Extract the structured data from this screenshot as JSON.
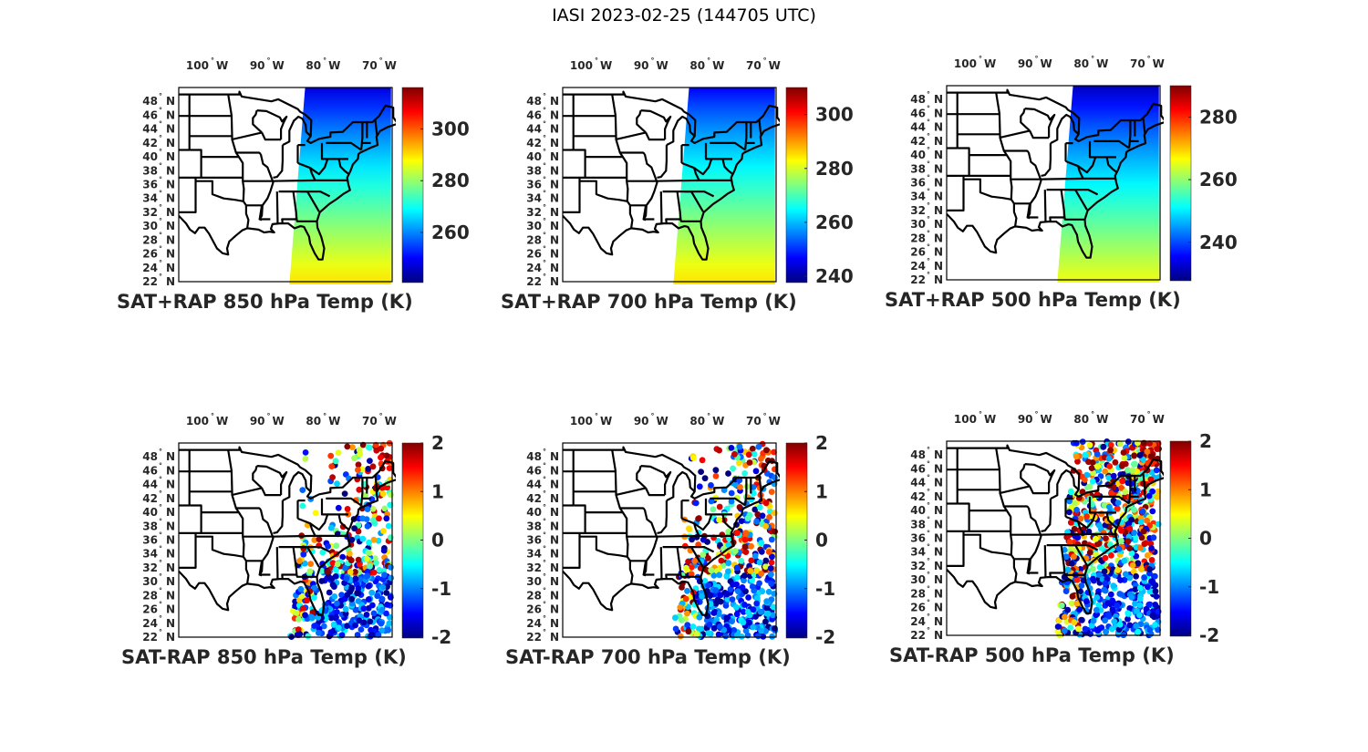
{
  "title": "IASI 2023-02-25 (144705 UTC)",
  "colors": {
    "outline": "#000000",
    "text": "#262626",
    "colormap": "jet"
  },
  "map_axes": {
    "lon_ticks": [
      "100",
      "90",
      "80",
      "70"
    ],
    "lon_tick_values": [
      -100,
      -90,
      -80,
      -70
    ],
    "lon_suffix": "W",
    "lat_ticks": [
      "48",
      "46",
      "44",
      "42",
      "40",
      "38",
      "36",
      "34",
      "32",
      "30",
      "28",
      "26",
      "24",
      "22"
    ],
    "lat_tick_values": [
      48,
      46,
      44,
      42,
      40,
      38,
      36,
      34,
      32,
      30,
      28,
      26,
      24,
      22
    ],
    "lat_suffix": "N",
    "degree_symbol": "°",
    "lon_range": [
      -106,
      -68
    ],
    "lat_range": [
      22,
      50
    ]
  },
  "chart_data": [
    {
      "type": "heatmap",
      "title": "SAT+RAP 850 hPa Temp (K)",
      "clim": [
        241,
        316
      ],
      "colorbar_ticks": [
        "260",
        "280",
        "300"
      ],
      "colorbar_tick_values": [
        260,
        280,
        300
      ],
      "field": "total",
      "north_value": 248,
      "south_value": 290
    },
    {
      "type": "heatmap",
      "title": "SAT+RAP 700 hPa Temp (K)",
      "clim": [
        238,
        310
      ],
      "colorbar_ticks": [
        "240",
        "260",
        "280",
        "300"
      ],
      "colorbar_tick_values": [
        240,
        260,
        280,
        300
      ],
      "field": "total",
      "north_value": 247,
      "south_value": 285
    },
    {
      "type": "heatmap",
      "title": "SAT+RAP 500 hPa Temp (K)",
      "clim": [
        228,
        290
      ],
      "colorbar_ticks": [
        "240",
        "260",
        "280"
      ],
      "colorbar_tick_values": [
        240,
        260,
        280
      ],
      "field": "total",
      "north_value": 232,
      "south_value": 266
    },
    {
      "type": "scatter",
      "title": "SAT-RAP 850 hPa Temp (K)",
      "clim": [
        -2,
        2
      ],
      "colorbar_ticks": [
        "-2",
        "-1",
        "0",
        "1",
        "2"
      ],
      "colorbar_tick_values": [
        -2,
        -1,
        0,
        1,
        2
      ],
      "field": "difference"
    },
    {
      "type": "scatter",
      "title": "SAT-RAP 700 hPa Temp (K)",
      "clim": [
        -2,
        2
      ],
      "colorbar_ticks": [
        "-2",
        "-1",
        "0",
        "1",
        "2"
      ],
      "colorbar_tick_values": [
        -2,
        -1,
        0,
        1,
        2
      ],
      "field": "difference"
    },
    {
      "type": "scatter",
      "title": "SAT-RAP 500 hPa Temp (K)",
      "clim": [
        -2,
        2
      ],
      "colorbar_ticks": [
        "-2",
        "-1",
        "0",
        "1",
        "2"
      ],
      "colorbar_tick_values": [
        -2,
        -1,
        0,
        1,
        2
      ],
      "field": "difference"
    }
  ]
}
